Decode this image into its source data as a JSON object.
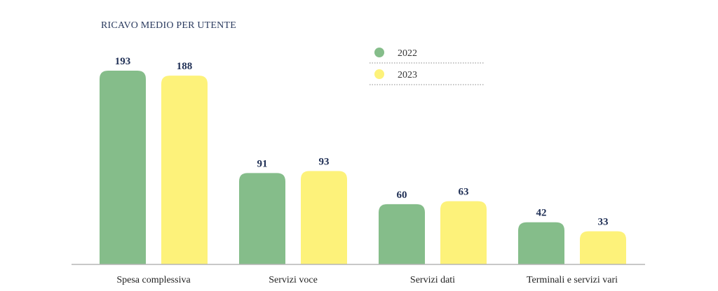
{
  "chart_data": {
    "type": "bar",
    "title": "RICAVO MEDIO PER UTENTE",
    "categories": [
      "Spesa complessiva",
      "Servizi voce",
      "Servizi dati",
      "Terminali e servizi vari"
    ],
    "series": [
      {
        "name": "2022",
        "values": [
          193,
          91,
          60,
          42
        ],
        "color": "#85bd8a"
      },
      {
        "name": "2023",
        "values": [
          188,
          93,
          63,
          33
        ],
        "color": "#fdf27a"
      }
    ],
    "ylim": [
      0,
      193
    ],
    "legend_position": "top-right",
    "grid": false
  }
}
